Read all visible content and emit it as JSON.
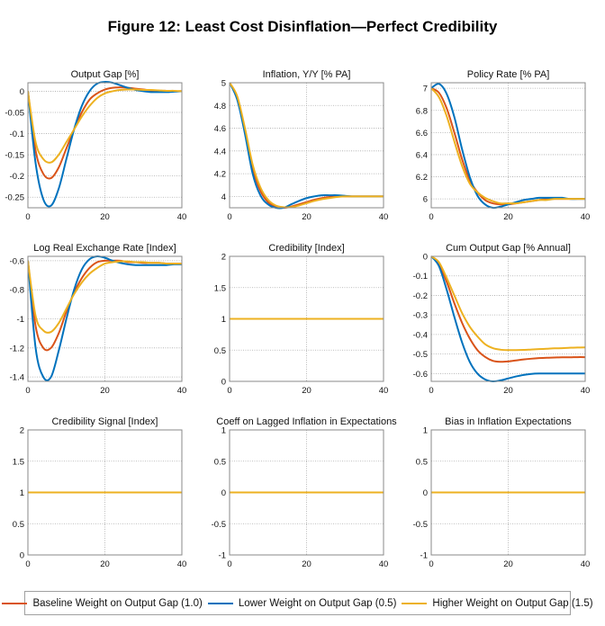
{
  "figure": {
    "title": "Figure 12: Least Cost Disinflation—Perfect Credibility"
  },
  "legend": {
    "placement": "bottom",
    "items": [
      {
        "label": "Baseline Weight on Output Gap (1.0)",
        "color": "#d95319"
      },
      {
        "label": "Lower Weight on Output Gap (0.5)",
        "color": "#0072bd"
      },
      {
        "label": "Higher Weight on Output Gap (1.5)",
        "color": "#edb120"
      }
    ]
  },
  "chart_data": [
    {
      "type": "line",
      "title": "Output Gap [%]",
      "xlabel": "",
      "ylabel": "",
      "xlim": [
        0,
        40
      ],
      "ylim": [
        -0.275,
        0.02
      ],
      "xticks": [
        0,
        20,
        40
      ],
      "yticks": [
        0,
        -0.05,
        -0.1,
        -0.15,
        -0.2,
        -0.25
      ],
      "ytick_labels": [
        "0",
        "-0.05",
        "-0.1",
        "-0.15",
        "-0.2",
        "-0.25"
      ],
      "grid": true,
      "x": [
        0,
        2,
        4,
        6,
        8,
        10,
        12,
        14,
        16,
        18,
        20,
        22,
        24,
        26,
        28,
        30,
        32,
        34,
        36,
        38,
        40
      ],
      "series": [
        {
          "name": "Baseline Weight on Output Gap (1.0)",
          "values": [
            0,
            -0.14,
            -0.195,
            -0.205,
            -0.18,
            -0.135,
            -0.09,
            -0.05,
            -0.02,
            -0.005,
            0.004,
            0.008,
            0.009,
            0.008,
            0.006,
            0.004,
            0.002,
            0.001,
            0.001,
            0,
            0
          ]
        },
        {
          "name": "Lower Weight on Output Gap (0.5)",
          "values": [
            0,
            -0.17,
            -0.255,
            -0.27,
            -0.23,
            -0.16,
            -0.09,
            -0.035,
            0.0,
            0.018,
            0.022,
            0.02,
            0.014,
            0.008,
            0.003,
            0.0,
            -0.002,
            -0.002,
            -0.002,
            -0.001,
            0
          ]
        },
        {
          "name": "Higher Weight on Output Gap (1.5)",
          "values": [
            0,
            -0.12,
            -0.16,
            -0.168,
            -0.15,
            -0.12,
            -0.09,
            -0.06,
            -0.035,
            -0.016,
            -0.005,
            0.0,
            0.003,
            0.004,
            0.004,
            0.003,
            0.003,
            0.002,
            0.001,
            0.001,
            0
          ]
        }
      ]
    },
    {
      "type": "line",
      "title": "Inflation, Y/Y [% PA]",
      "xlabel": "",
      "ylabel": "",
      "xlim": [
        0,
        40
      ],
      "ylim": [
        3.9,
        5.0
      ],
      "xticks": [
        0,
        20,
        40
      ],
      "yticks": [
        5,
        4.8,
        4.6,
        4.4,
        4.2,
        4
      ],
      "ytick_labels": [
        "5",
        "4.8",
        "4.6",
        "4.4",
        "4.2",
        "4"
      ],
      "grid": true,
      "x": [
        0,
        2,
        4,
        6,
        8,
        10,
        12,
        14,
        16,
        18,
        20,
        22,
        24,
        26,
        28,
        30,
        32,
        34,
        36,
        38,
        40
      ],
      "series": [
        {
          "name": "Baseline Weight on Output Gap (1.0)",
          "values": [
            5.0,
            4.87,
            4.58,
            4.25,
            4.05,
            3.95,
            3.91,
            3.9,
            3.91,
            3.93,
            3.95,
            3.97,
            3.985,
            3.995,
            4.0,
            4.0,
            4.0,
            4.0,
            4.0,
            4.0,
            4.0
          ]
        },
        {
          "name": "Lower Weight on Output Gap (0.5)",
          "values": [
            5.0,
            4.85,
            4.55,
            4.2,
            4.01,
            3.93,
            3.9,
            3.9,
            3.93,
            3.96,
            3.985,
            4.0,
            4.01,
            4.01,
            4.01,
            4.005,
            4.0,
            4.0,
            4.0,
            4.0,
            4.0
          ]
        },
        {
          "name": "Higher Weight on Output Gap (1.5)",
          "values": [
            5.0,
            4.88,
            4.6,
            4.28,
            4.08,
            3.97,
            3.92,
            3.905,
            3.905,
            3.92,
            3.94,
            3.96,
            3.975,
            3.985,
            3.995,
            4.0,
            4.0,
            4.0,
            4.0,
            4.0,
            4.0
          ]
        }
      ]
    },
    {
      "type": "line",
      "title": "Policy Rate [% PA]",
      "xlabel": "",
      "ylabel": "",
      "xlim": [
        0,
        40
      ],
      "ylim": [
        5.92,
        7.05
      ],
      "xticks": [
        0,
        20,
        40
      ],
      "yticks": [
        7,
        6.8,
        6.6,
        6.4,
        6.2,
        6
      ],
      "ytick_labels": [
        "7",
        "6.8",
        "6.6",
        "6.4",
        "6.2",
        "6"
      ],
      "grid": true,
      "x": [
        0,
        2,
        4,
        6,
        8,
        10,
        12,
        14,
        16,
        18,
        20,
        22,
        24,
        26,
        28,
        30,
        32,
        34,
        36,
        38,
        40
      ],
      "series": [
        {
          "name": "Baseline Weight on Output Gap (1.0)",
          "values": [
            7.0,
            6.96,
            6.82,
            6.6,
            6.36,
            6.17,
            6.06,
            5.99,
            5.96,
            5.95,
            5.95,
            5.96,
            5.97,
            5.98,
            5.99,
            6.0,
            6.0,
            6.0,
            6.0,
            6.0,
            6.0
          ]
        },
        {
          "name": "Lower Weight on Output Gap (0.5)",
          "values": [
            7.0,
            7.04,
            6.95,
            6.74,
            6.45,
            6.2,
            6.03,
            5.95,
            5.92,
            5.93,
            5.95,
            5.97,
            5.99,
            6.0,
            6.01,
            6.01,
            6.01,
            6.01,
            6.0,
            6.0,
            6.0
          ]
        },
        {
          "name": "Higher Weight on Output Gap (1.5)",
          "values": [
            7.0,
            6.92,
            6.75,
            6.52,
            6.3,
            6.14,
            6.06,
            6.01,
            5.98,
            5.96,
            5.96,
            5.96,
            5.97,
            5.98,
            5.99,
            5.99,
            6.0,
            6.0,
            6.0,
            6.0,
            6.0
          ]
        }
      ]
    },
    {
      "type": "line",
      "title": "Log Real Exchange Rate [Index]",
      "xlabel": "",
      "ylabel": "",
      "xlim": [
        0,
        40
      ],
      "ylim": [
        -1.43,
        -0.57
      ],
      "xticks": [
        0,
        20,
        40
      ],
      "yticks": [
        -0.6,
        -0.8,
        -1,
        -1.2,
        -1.4
      ],
      "ytick_labels": [
        "-0.6",
        "-0.8",
        "-1",
        "-1.2",
        "-1.4"
      ],
      "grid": true,
      "x": [
        0,
        2,
        4,
        6,
        8,
        10,
        12,
        14,
        16,
        18,
        20,
        22,
        24,
        26,
        28,
        30,
        32,
        34,
        36,
        38,
        40
      ],
      "series": [
        {
          "name": "Baseline Weight on Output Gap (1.0)",
          "values": [
            -0.6,
            -1.05,
            -1.2,
            -1.2,
            -1.1,
            -0.95,
            -0.82,
            -0.72,
            -0.65,
            -0.61,
            -0.6,
            -0.6,
            -0.6,
            -0.61,
            -0.61,
            -0.615,
            -0.615,
            -0.615,
            -0.62,
            -0.62,
            -0.62
          ]
        },
        {
          "name": "Lower Weight on Output Gap (0.5)",
          "values": [
            -0.6,
            -1.2,
            -1.4,
            -1.4,
            -1.22,
            -1.0,
            -0.8,
            -0.66,
            -0.59,
            -0.57,
            -0.58,
            -0.6,
            -0.615,
            -0.625,
            -0.63,
            -0.63,
            -0.63,
            -0.63,
            -0.63,
            -0.625,
            -0.625
          ]
        },
        {
          "name": "Higher Weight on Output Gap (1.5)",
          "values": [
            -0.6,
            -0.98,
            -1.08,
            -1.09,
            -1.03,
            -0.93,
            -0.83,
            -0.75,
            -0.69,
            -0.65,
            -0.62,
            -0.61,
            -0.605,
            -0.605,
            -0.61,
            -0.61,
            -0.615,
            -0.615,
            -0.62,
            -0.62,
            -0.62
          ]
        }
      ]
    },
    {
      "type": "line",
      "title": "Credibility [Index]",
      "xlabel": "",
      "ylabel": "",
      "xlim": [
        0,
        40
      ],
      "ylim": [
        0,
        2
      ],
      "xticks": [
        0,
        20,
        40
      ],
      "yticks": [
        2,
        1.5,
        1,
        0.5,
        0
      ],
      "ytick_labels": [
        "2",
        "1.5",
        "1",
        "0.5",
        "0"
      ],
      "grid": true,
      "x": [
        0,
        40
      ],
      "series": [
        {
          "name": "Baseline Weight on Output Gap (1.0)",
          "values": [
            1,
            1
          ]
        },
        {
          "name": "Lower Weight on Output Gap (0.5)",
          "values": [
            1,
            1
          ]
        },
        {
          "name": "Higher Weight on Output Gap (1.5)",
          "values": [
            1,
            1
          ]
        }
      ]
    },
    {
      "type": "line",
      "title": "Cum Output Gap [% Annual]",
      "xlabel": "",
      "ylabel": "",
      "xlim": [
        0,
        40
      ],
      "ylim": [
        -0.64,
        0
      ],
      "xticks": [
        0,
        20,
        40
      ],
      "yticks": [
        0,
        -0.1,
        -0.2,
        -0.3,
        -0.4,
        -0.5,
        -0.6
      ],
      "ytick_labels": [
        "0",
        "-0.1",
        "-0.2",
        "-0.3",
        "-0.4",
        "-0.5",
        "-0.6"
      ],
      "grid": true,
      "x": [
        0,
        2,
        4,
        6,
        8,
        10,
        12,
        14,
        16,
        18,
        20,
        22,
        24,
        26,
        28,
        30,
        32,
        34,
        36,
        38,
        40
      ],
      "series": [
        {
          "name": "Baseline Weight on Output Gap (1.0)",
          "values": [
            0,
            -0.04,
            -0.13,
            -0.24,
            -0.34,
            -0.42,
            -0.48,
            -0.515,
            -0.535,
            -0.54,
            -0.538,
            -0.533,
            -0.528,
            -0.524,
            -0.521,
            -0.519,
            -0.518,
            -0.517,
            -0.517,
            -0.516,
            -0.516
          ]
        },
        {
          "name": "Lower Weight on Output Gap (0.5)",
          "values": [
            0,
            -0.05,
            -0.17,
            -0.31,
            -0.44,
            -0.54,
            -0.6,
            -0.63,
            -0.64,
            -0.635,
            -0.625,
            -0.615,
            -0.607,
            -0.602,
            -0.6,
            -0.6,
            -0.6,
            -0.6,
            -0.6,
            -0.6,
            -0.6
          ]
        },
        {
          "name": "Higher Weight on Output Gap (1.5)",
          "values": [
            0,
            -0.03,
            -0.11,
            -0.2,
            -0.29,
            -0.36,
            -0.41,
            -0.45,
            -0.47,
            -0.478,
            -0.48,
            -0.48,
            -0.479,
            -0.477,
            -0.475,
            -0.473,
            -0.471,
            -0.47,
            -0.468,
            -0.467,
            -0.466
          ]
        }
      ]
    },
    {
      "type": "line",
      "title": "Credibility Signal [Index]",
      "xlabel": "",
      "ylabel": "",
      "xlim": [
        0,
        40
      ],
      "ylim": [
        0,
        2
      ],
      "xticks": [
        0,
        20,
        40
      ],
      "yticks": [
        2,
        1.5,
        1,
        0.5,
        0
      ],
      "ytick_labels": [
        "2",
        "1.5",
        "1",
        "0.5",
        "0"
      ],
      "grid": true,
      "x": [
        0,
        40
      ],
      "series": [
        {
          "name": "Baseline Weight on Output Gap (1.0)",
          "values": [
            1,
            1
          ]
        },
        {
          "name": "Lower Weight on Output Gap (0.5)",
          "values": [
            1,
            1
          ]
        },
        {
          "name": "Higher Weight on Output Gap (1.5)",
          "values": [
            1,
            1
          ]
        }
      ]
    },
    {
      "type": "line",
      "title": "Coeff on Lagged Inflation in Expectations",
      "xlabel": "",
      "ylabel": "",
      "xlim": [
        0,
        40
      ],
      "ylim": [
        -1,
        1
      ],
      "xticks": [
        0,
        20,
        40
      ],
      "yticks": [
        1,
        0.5,
        0,
        -0.5,
        -1
      ],
      "ytick_labels": [
        "1",
        "0.5",
        "0",
        "-0.5",
        "-1"
      ],
      "grid": true,
      "x": [
        0,
        40
      ],
      "series": [
        {
          "name": "Baseline Weight on Output Gap (1.0)",
          "values": [
            0,
            0
          ]
        },
        {
          "name": "Lower Weight on Output Gap (0.5)",
          "values": [
            0,
            0
          ]
        },
        {
          "name": "Higher Weight on Output Gap (1.5)",
          "values": [
            0,
            0
          ]
        }
      ]
    },
    {
      "type": "line",
      "title": "Bias in Inflation Expectations",
      "xlabel": "",
      "ylabel": "",
      "xlim": [
        0,
        40
      ],
      "ylim": [
        -1,
        1
      ],
      "xticks": [
        0,
        20,
        40
      ],
      "yticks": [
        1,
        0.5,
        0,
        -0.5,
        -1
      ],
      "ytick_labels": [
        "1",
        "0.5",
        "0",
        "-0.5",
        "-1"
      ],
      "grid": true,
      "x": [
        0,
        40
      ],
      "series": [
        {
          "name": "Baseline Weight on Output Gap (1.0)",
          "values": [
            0,
            0
          ]
        },
        {
          "name": "Lower Weight on Output Gap (0.5)",
          "values": [
            0,
            0
          ]
        },
        {
          "name": "Higher Weight on Output Gap (1.5)",
          "values": [
            0,
            0
          ]
        }
      ]
    }
  ]
}
